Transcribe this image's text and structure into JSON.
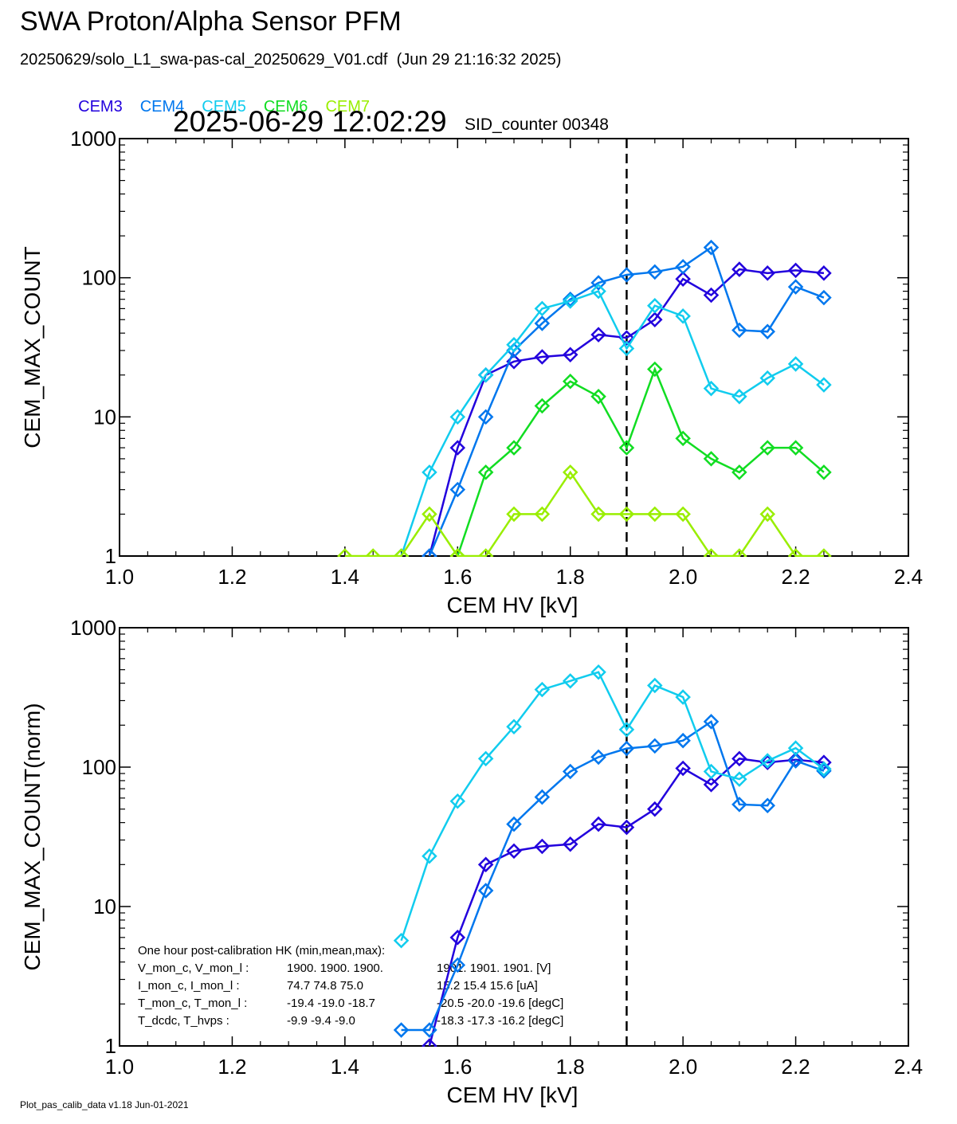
{
  "header": {
    "title": "SWA Proton/Alpha Sensor PFM",
    "subtitle": "20250629/solo_L1_swa-pas-cal_20250629_V01.cdf  (Jun 29 21:16:32 2025)",
    "timestamp": "2025-06-29 12:02:29",
    "sid_counter": "SID_counter 00348"
  },
  "legend": [
    {
      "label": "CEM3",
      "color": "#2200dd"
    },
    {
      "label": "CEM4",
      "color": "#0077ee"
    },
    {
      "label": "CEM5",
      "color": "#11ccee"
    },
    {
      "label": "CEM6",
      "color": "#11dd22"
    },
    {
      "label": "CEM7",
      "color": "#99ee00"
    }
  ],
  "footer": "Plot_pas_calib_data v1.18 Jun-01-2021",
  "chart_data": [
    {
      "type": "line",
      "xlabel": "CEM HV [kV]",
      "ylabel": "CEM_MAX_COUNT",
      "xlim": [
        1.0,
        2.4
      ],
      "ylim": [
        1,
        1000
      ],
      "yscale": "log",
      "xticks": [
        "1.0",
        "1.2",
        "1.4",
        "1.6",
        "1.8",
        "2.0",
        "2.2",
        "2.4"
      ],
      "yticks": [
        "1",
        "10",
        "100",
        "1000"
      ],
      "vline_x": 1.9,
      "series": [
        {
          "name": "CEM3",
          "color": "#2200dd",
          "x": [
            1.55,
            1.6,
            1.65,
            1.7,
            1.75,
            1.8,
            1.85,
            1.9,
            1.95,
            2.0,
            2.05,
            2.1,
            2.15,
            2.2,
            2.25
          ],
          "y": [
            1,
            6,
            20,
            25,
            27,
            28,
            39,
            37,
            50,
            98,
            75,
            115,
            108,
            113,
            108
          ]
        },
        {
          "name": "CEM4",
          "color": "#0077ee",
          "x": [
            1.55,
            1.6,
            1.65,
            1.7,
            1.75,
            1.8,
            1.85,
            1.9,
            1.95,
            2.0,
            2.05,
            2.1,
            2.15,
            2.2,
            2.25
          ],
          "y": [
            1,
            3,
            10,
            30,
            47,
            70,
            92,
            105,
            110,
            120,
            165,
            42,
            41,
            86,
            72
          ]
        },
        {
          "name": "CEM5",
          "color": "#11ccee",
          "x": [
            1.5,
            1.55,
            1.6,
            1.65,
            1.7,
            1.75,
            1.8,
            1.85,
            1.9,
            1.95,
            2.0,
            2.05,
            2.1,
            2.15,
            2.2,
            2.25
          ],
          "y": [
            1,
            4,
            10,
            20,
            33,
            60,
            68,
            80,
            31,
            63,
            53,
            16,
            14,
            19,
            24,
            17
          ]
        },
        {
          "name": "CEM6",
          "color": "#11dd22",
          "x": [
            1.6,
            1.65,
            1.7,
            1.75,
            1.8,
            1.85,
            1.9,
            1.95,
            2.0,
            2.05,
            2.1,
            2.15,
            2.2,
            2.25
          ],
          "y": [
            1,
            4,
            6,
            12,
            18,
            14,
            6,
            22,
            7,
            5,
            4,
            6,
            6,
            4
          ]
        },
        {
          "name": "CEM7",
          "color": "#99ee00",
          "x": [
            1.4,
            1.45,
            1.5,
            1.55,
            1.6,
            1.65,
            1.7,
            1.75,
            1.8,
            1.85,
            1.9,
            1.95,
            2.0,
            2.05,
            2.1,
            2.15,
            2.2,
            2.25
          ],
          "y": [
            1,
            1,
            1,
            2,
            1,
            1,
            2,
            2,
            4,
            2,
            2,
            2,
            2,
            1,
            1,
            2,
            1,
            1
          ]
        }
      ]
    },
    {
      "type": "line",
      "xlabel": "CEM HV [kV]",
      "ylabel": "CEM_MAX_COUNT(norm)",
      "xlim": [
        1.0,
        2.4
      ],
      "ylim": [
        1,
        1000
      ],
      "yscale": "log",
      "xticks": [
        "1.0",
        "1.2",
        "1.4",
        "1.6",
        "1.8",
        "2.0",
        "2.2",
        "2.4"
      ],
      "yticks": [
        "1",
        "10",
        "100",
        "1000"
      ],
      "vline_x": 1.9,
      "series": [
        {
          "name": "CEM3",
          "color": "#2200dd",
          "x": [
            1.55,
            1.6,
            1.65,
            1.7,
            1.75,
            1.8,
            1.85,
            1.9,
            1.95,
            2.0,
            2.05,
            2.1,
            2.15,
            2.2,
            2.25
          ],
          "y": [
            1,
            6,
            20,
            25,
            27,
            28,
            39,
            37,
            50,
            98,
            75,
            115,
            108,
            113,
            108
          ]
        },
        {
          "name": "CEM4",
          "color": "#0077ee",
          "x": [
            1.5,
            1.55,
            1.6,
            1.65,
            1.7,
            1.75,
            1.8,
            1.85,
            1.9,
            1.95,
            2.0,
            2.05,
            2.1,
            2.15,
            2.2,
            2.25
          ],
          "y": [
            1.3,
            1.3,
            3.8,
            13,
            39,
            61,
            93,
            118,
            136,
            142,
            155,
            212,
            54,
            53,
            111,
            94
          ]
        },
        {
          "name": "CEM5",
          "color": "#11ccee",
          "x": [
            1.5,
            1.55,
            1.6,
            1.65,
            1.7,
            1.75,
            1.8,
            1.85,
            1.9,
            1.95,
            2.0,
            2.05,
            2.1,
            2.15,
            2.2,
            2.25
          ],
          "y": [
            5.7,
            23,
            57,
            115,
            195,
            360,
            415,
            480,
            186,
            385,
            318,
            93,
            82,
            111,
            137,
            97
          ]
        }
      ],
      "annotation": {
        "heading": "One hour post-calibration HK (min,mean,max):",
        "rows": [
          {
            "label": "V_mon_c, V_mon_l :",
            "c": "1900.  1900.  1900.",
            "l": "1901.  1901.  1901. [V]"
          },
          {
            "label": "I_mon_c,  I_mon_l :",
            "c": "74.7   74.8   75.0",
            "l": "15.2   15.4   15.6  [uA]"
          },
          {
            "label": "T_mon_c, T_mon_l :",
            "c": "-19.4  -19.0  -18.7",
            "l": "-20.5  -20.0  -19.6  [degC]"
          },
          {
            "label": "T_dcdc,    T_hvps :",
            "c": "-9.9   -9.4   -9.0",
            "l": "-18.3  -17.3  -16.2  [degC]"
          }
        ]
      }
    }
  ]
}
